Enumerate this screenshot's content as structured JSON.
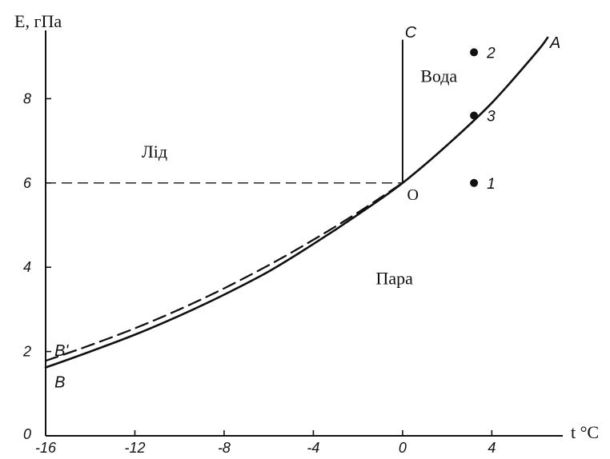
{
  "chart_data": {
    "type": "line",
    "title": "",
    "ylabel": "E, гПа",
    "xlabel": "t °C",
    "xlim": [
      -16,
      7
    ],
    "ylim": [
      0,
      10
    ],
    "x_ticks": [
      -16,
      -12,
      -8,
      -4,
      0,
      4
    ],
    "x_tick_labels": [
      "-16",
      "-12",
      "-8",
      "-4",
      "0",
      "4"
    ],
    "y_ticks": [
      0,
      2,
      4,
      6,
      8
    ],
    "y_tick_labels": [
      "0",
      "2",
      "4",
      "6",
      "8"
    ],
    "grid": false,
    "series": [
      {
        "name": "A",
        "style": "solid",
        "x": [
          -16,
          -14,
          -12,
          -10,
          -8,
          -6,
          -4,
          -2,
          0,
          2,
          4,
          6,
          6.5
        ],
        "y": [
          1.62,
          2.0,
          2.4,
          2.85,
          3.35,
          3.9,
          4.55,
          5.25,
          6.0,
          6.9,
          7.9,
          9.1,
          9.45
        ]
      },
      {
        "name": "B'",
        "style": "dashed",
        "x": [
          -16,
          -14,
          -12,
          -10,
          -8,
          -6,
          -4,
          -2,
          0
        ],
        "y": [
          1.78,
          2.15,
          2.55,
          3.0,
          3.5,
          4.05,
          4.65,
          5.3,
          6.0
        ]
      }
    ],
    "boundary_lines": [
      {
        "name": "OC",
        "style": "solid",
        "x": [
          0,
          0
        ],
        "y": [
          6.0,
          9.4
        ]
      },
      {
        "name": "triple-point-level",
        "style": "dashed",
        "x": [
          -16,
          0
        ],
        "y": [
          6.0,
          6.0
        ]
      }
    ],
    "points": [
      {
        "label": "1",
        "x": 3.2,
        "y": 6.0
      },
      {
        "label": "2",
        "x": 3.2,
        "y": 9.1
      },
      {
        "label": "3",
        "x": 3.2,
        "y": 7.6
      }
    ],
    "annotations": [
      {
        "text": "Лід",
        "x": -11.7,
        "y": 6.6
      },
      {
        "text": "Вода",
        "x": 0.8,
        "y": 8.4
      },
      {
        "text": "Пара",
        "x": -1.2,
        "y": 3.6
      },
      {
        "text": "O",
        "x": 0.2,
        "y": 5.6
      },
      {
        "text": "C",
        "x": 0.1,
        "y": 9.45
      },
      {
        "text": "A",
        "x": 6.6,
        "y": 9.2
      },
      {
        "text": "B",
        "x": -15.6,
        "y": 1.15
      },
      {
        "text": "B'",
        "x": -15.6,
        "y": 1.9
      }
    ]
  }
}
